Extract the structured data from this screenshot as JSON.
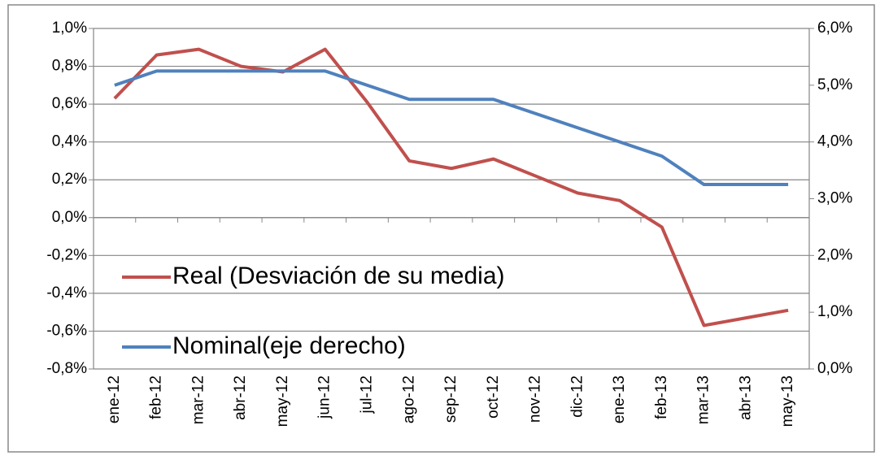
{
  "chart_data": {
    "type": "line",
    "categories": [
      "ene-12",
      "feb-12",
      "mar-12",
      "abr-12",
      "may-12",
      "jun-12",
      "jul-12",
      "ago-12",
      "sep-12",
      "oct-12",
      "nov-12",
      "dic-12",
      "ene-13",
      "feb-13",
      "mar-13",
      "abr-13",
      "may-13"
    ],
    "series": [
      {
        "name": "Real (Desviación de su media)",
        "color": "#c0504d",
        "values": [
          0.63,
          0.86,
          0.89,
          0.8,
          0.77,
          0.89,
          0.61,
          0.3,
          0.26,
          0.31,
          0.22,
          0.13,
          0.09,
          -0.05,
          -0.57,
          -0.53,
          -0.49
        ]
      },
      {
        "name": "Nominal(eje derecho)",
        "color": "#4f81bd",
        "axis": "y2",
        "values": [
          5.0,
          5.25,
          5.25,
          5.25,
          5.25,
          5.25,
          5.0,
          4.75,
          4.75,
          4.75,
          4.5,
          4.25,
          4.0,
          3.75,
          3.25,
          3.25,
          3.25
        ]
      }
    ],
    "ylim": [
      -0.8,
      1.0
    ],
    "yticks": [
      {
        "value": -0.8,
        "label": "-0,8%"
      },
      {
        "value": -0.6,
        "label": "-0,6%"
      },
      {
        "value": -0.4,
        "label": "-0,4%"
      },
      {
        "value": -0.2,
        "label": "-0,2%"
      },
      {
        "value": 0,
        "label": "0,0%"
      },
      {
        "value": 0.2,
        "label": "0,2%"
      },
      {
        "value": 0.4,
        "label": "0,4%"
      },
      {
        "value": 0.6,
        "label": "0,6%"
      },
      {
        "value": 0.8,
        "label": "0,8%"
      },
      {
        "value": 1.0,
        "label": "1,0%"
      }
    ],
    "y2lim": [
      0,
      6
    ],
    "y2ticks": [
      {
        "value": 0,
        "label": "0,0%"
      },
      {
        "value": 1,
        "label": "1,0%"
      },
      {
        "value": 2,
        "label": "2,0%"
      },
      {
        "value": 3,
        "label": "3,0%"
      },
      {
        "value": 4,
        "label": "4,0%"
      },
      {
        "value": 5,
        "label": "5,0%"
      },
      {
        "value": 6,
        "label": "6,0%"
      }
    ],
    "grid": true,
    "legend": "lower left"
  }
}
